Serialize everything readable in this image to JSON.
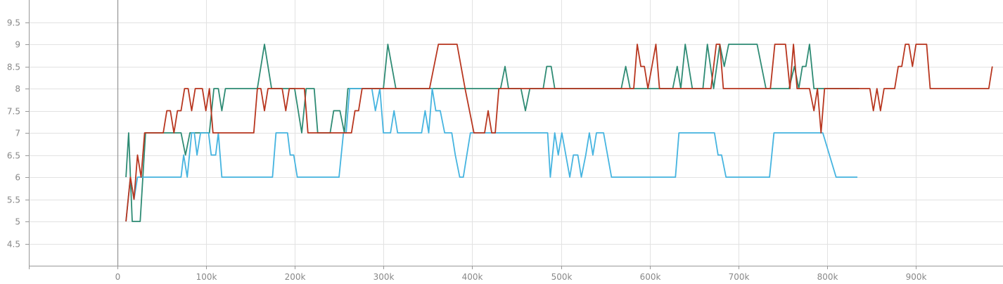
{
  "chart_data": {
    "type": "line",
    "title": "",
    "xlabel": "",
    "ylabel": "",
    "xlim": [
      -100000,
      1000000
    ],
    "ylim": [
      4,
      10
    ],
    "grid": true,
    "x_ticks": [
      0,
      100000,
      200000,
      300000,
      400000,
      500000,
      600000,
      700000,
      800000,
      900000
    ],
    "x_tick_labels": [
      "0",
      "100k",
      "200k",
      "300k",
      "400k",
      "500k",
      "600k",
      "700k",
      "800k",
      "900k"
    ],
    "y_ticks": [
      4.5,
      5,
      5.5,
      6,
      6.5,
      7,
      7.5,
      8,
      8.5,
      9,
      9.5
    ],
    "y_tick_labels": [
      "4.5",
      "5",
      "5.5",
      "6",
      "6.5",
      "7",
      "7.5",
      "8",
      "8.5",
      "9",
      "9.5"
    ],
    "colors": {
      "teal": "#2e8b74",
      "blue": "#45b4e0",
      "red": "#b8361f",
      "grid": "#e2e2e2",
      "axis": "#999999",
      "tick_label": "#888888"
    },
    "series": [
      {
        "color": "#2e8b74",
        "points": [
          [
            10000,
            6
          ],
          [
            13000,
            7
          ],
          [
            17000,
            5
          ],
          [
            26000,
            5
          ],
          [
            32000,
            7
          ],
          [
            72000,
            7
          ],
          [
            77000,
            6.5
          ],
          [
            82000,
            7
          ],
          [
            104000,
            7
          ],
          [
            109000,
            8
          ],
          [
            114000,
            8
          ],
          [
            118000,
            7.5
          ],
          [
            122000,
            8
          ],
          [
            158000,
            8
          ],
          [
            166000,
            9
          ],
          [
            174000,
            8
          ],
          [
            200000,
            8
          ],
          [
            208000,
            7
          ],
          [
            213000,
            8
          ],
          [
            222000,
            8
          ],
          [
            226000,
            7
          ],
          [
            240000,
            7
          ],
          [
            244000,
            7.5
          ],
          [
            251000,
            7.5
          ],
          [
            256000,
            7
          ],
          [
            260000,
            8
          ],
          [
            300000,
            8
          ],
          [
            305000,
            9
          ],
          [
            314000,
            8
          ],
          [
            432000,
            8
          ],
          [
            437000,
            8.5
          ],
          [
            441000,
            8
          ],
          [
            455000,
            8
          ],
          [
            460000,
            7.5
          ],
          [
            465000,
            8
          ],
          [
            480000,
            8
          ],
          [
            484000,
            8.5
          ],
          [
            489000,
            8.5
          ],
          [
            493000,
            8
          ],
          [
            568000,
            8
          ],
          [
            573000,
            8.5
          ],
          [
            578000,
            8
          ],
          [
            626000,
            8
          ],
          [
            631000,
            8.5
          ],
          [
            635000,
            8
          ],
          [
            640000,
            9
          ],
          [
            648000,
            8
          ],
          [
            660000,
            8
          ],
          [
            665000,
            9
          ],
          [
            672000,
            8
          ],
          [
            679000,
            9
          ],
          [
            684000,
            8.5
          ],
          [
            689000,
            9
          ],
          [
            721000,
            9
          ],
          [
            726000,
            8.5
          ],
          [
            731000,
            8
          ],
          [
            757000,
            8
          ],
          [
            763000,
            8.5
          ],
          [
            768000,
            8
          ],
          [
            772000,
            8.5
          ],
          [
            776000,
            8.5
          ],
          [
            780000,
            9
          ],
          [
            785000,
            8
          ],
          [
            836000,
            8
          ]
        ]
      },
      {
        "color": "#45b4e0",
        "points": [
          [
            10000,
            5
          ],
          [
            15000,
            6
          ],
          [
            19000,
            5.5
          ],
          [
            23000,
            6
          ],
          [
            72000,
            6
          ],
          [
            75000,
            6.5
          ],
          [
            79000,
            6
          ],
          [
            84000,
            7
          ],
          [
            87000,
            7
          ],
          [
            90000,
            6.5
          ],
          [
            94000,
            7
          ],
          [
            103000,
            7
          ],
          [
            106000,
            6.5
          ],
          [
            111000,
            6.5
          ],
          [
            114000,
            7
          ],
          [
            118000,
            6
          ],
          [
            175000,
            6
          ],
          [
            179000,
            7
          ],
          [
            192000,
            7
          ],
          [
            195000,
            6.5
          ],
          [
            199000,
            6.5
          ],
          [
            203000,
            6
          ],
          [
            250000,
            6
          ],
          [
            255000,
            7
          ],
          [
            258000,
            7
          ],
          [
            262000,
            8
          ],
          [
            287000,
            8
          ],
          [
            291000,
            7.5
          ],
          [
            296000,
            8
          ],
          [
            300000,
            7
          ],
          [
            308000,
            7
          ],
          [
            312000,
            7.5
          ],
          [
            316000,
            7
          ],
          [
            343000,
            7
          ],
          [
            347000,
            7.5
          ],
          [
            351000,
            7
          ],
          [
            355000,
            8
          ],
          [
            359000,
            7.5
          ],
          [
            364000,
            7.5
          ],
          [
            369000,
            7
          ],
          [
            377000,
            7
          ],
          [
            381000,
            6.5
          ],
          [
            386000,
            6
          ],
          [
            390000,
            6
          ],
          [
            394000,
            6.5
          ],
          [
            398000,
            7
          ],
          [
            485000,
            7
          ],
          [
            488000,
            6
          ],
          [
            493000,
            7
          ],
          [
            497000,
            6.5
          ],
          [
            501000,
            7
          ],
          [
            510000,
            6
          ],
          [
            514000,
            6.5
          ],
          [
            519000,
            6.5
          ],
          [
            523000,
            6
          ],
          [
            528000,
            6.5
          ],
          [
            532000,
            7
          ],
          [
            536000,
            6.5
          ],
          [
            540000,
            7
          ],
          [
            548000,
            7
          ],
          [
            557000,
            6
          ],
          [
            629000,
            6
          ],
          [
            633000,
            7
          ],
          [
            673000,
            7
          ],
          [
            677000,
            6.5
          ],
          [
            681000,
            6.5
          ],
          [
            686000,
            6
          ],
          [
            735000,
            6
          ],
          [
            740000,
            7
          ],
          [
            795000,
            7
          ],
          [
            810000,
            6
          ],
          [
            834000,
            6
          ]
        ]
      },
      {
        "color": "#b8361f",
        "points": [
          [
            10000,
            5
          ],
          [
            15000,
            6
          ],
          [
            19000,
            5.5
          ],
          [
            23000,
            6.5
          ],
          [
            27000,
            6
          ],
          [
            31000,
            7
          ],
          [
            52000,
            7
          ],
          [
            56000,
            7.5
          ],
          [
            60000,
            7.5
          ],
          [
            64000,
            7
          ],
          [
            68000,
            7.5
          ],
          [
            72000,
            7.5
          ],
          [
            76000,
            8
          ],
          [
            80000,
            8
          ],
          [
            84000,
            7.5
          ],
          [
            88000,
            8
          ],
          [
            96000,
            8
          ],
          [
            100000,
            7.5
          ],
          [
            104000,
            8
          ],
          [
            108000,
            7
          ],
          [
            154000,
            7
          ],
          [
            158000,
            8
          ],
          [
            162000,
            8
          ],
          [
            166000,
            7.5
          ],
          [
            170000,
            8
          ],
          [
            186000,
            8
          ],
          [
            190000,
            7.5
          ],
          [
            194000,
            8
          ],
          [
            211000,
            8
          ],
          [
            215000,
            7
          ],
          [
            264000,
            7
          ],
          [
            268000,
            7.5
          ],
          [
            272000,
            7.5
          ],
          [
            276000,
            8
          ],
          [
            352000,
            8
          ],
          [
            362000,
            9
          ],
          [
            383000,
            9
          ],
          [
            392000,
            8
          ],
          [
            402000,
            7
          ],
          [
            414000,
            7
          ],
          [
            418000,
            7.5
          ],
          [
            422000,
            7
          ],
          [
            426000,
            7
          ],
          [
            430000,
            8
          ],
          [
            582000,
            8
          ],
          [
            586000,
            9
          ],
          [
            590000,
            8.5
          ],
          [
            594000,
            8.5
          ],
          [
            598000,
            8
          ],
          [
            607000,
            9
          ],
          [
            611000,
            8
          ],
          [
            669000,
            8
          ],
          [
            675000,
            9
          ],
          [
            679000,
            9
          ],
          [
            683000,
            8
          ],
          [
            736000,
            8
          ],
          [
            741000,
            9
          ],
          [
            753000,
            9
          ],
          [
            758000,
            8
          ],
          [
            762000,
            9
          ],
          [
            766000,
            8
          ],
          [
            780000,
            8
          ],
          [
            785000,
            7.5
          ],
          [
            789000,
            8
          ],
          [
            793000,
            7
          ],
          [
            797000,
            8
          ],
          [
            848000,
            8
          ],
          [
            852000,
            7.5
          ],
          [
            856000,
            8
          ],
          [
            860000,
            7.5
          ],
          [
            864000,
            8
          ],
          [
            876000,
            8
          ],
          [
            880000,
            8.5
          ],
          [
            884000,
            8.5
          ],
          [
            888000,
            9
          ],
          [
            892000,
            9
          ],
          [
            896000,
            8.5
          ],
          [
            900000,
            9
          ],
          [
            912000,
            9
          ],
          [
            916000,
            8
          ],
          [
            982000,
            8
          ],
          [
            986000,
            8.5
          ]
        ]
      }
    ]
  }
}
